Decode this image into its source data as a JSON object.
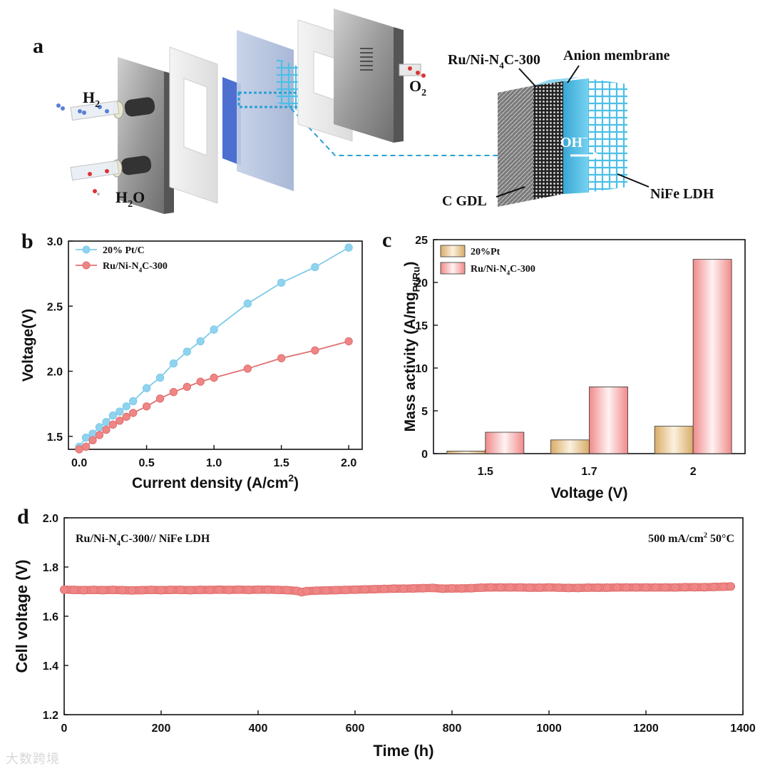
{
  "panels": {
    "a": {
      "letter": "a",
      "labels": {
        "h2": "H",
        "h2_sub": "2",
        "h2o_pre": "H",
        "h2o_sub": "2",
        "h2o_post": "O",
        "o2": "O",
        "o2_sub": "2",
        "cathode_pre": "Ru/Ni-N",
        "cathode_sub": "4",
        "cathode_post": "C-300",
        "membrane": "Anion membrane",
        "ion": "OH",
        "ion_sup": "−",
        "gdl": "C GDL",
        "anode": "NiFe LDH"
      }
    },
    "b": {
      "letter": "b"
    },
    "c": {
      "letter": "c"
    },
    "d": {
      "letter": "d"
    }
  },
  "watermark": "大数跨境",
  "colors": {
    "blue_series": "#7fcbe8",
    "blue_marker": "#8fd3ee",
    "red_series": "#e07070",
    "red_marker": "#ef8585",
    "gold_bar": "#d9ac68",
    "pink_bar": "#f08a8a"
  },
  "chart_data": [
    {
      "id": "b",
      "type": "line",
      "xlabel": "Current density (A/cm",
      "xlabel_sup": "2",
      "xlabel_end": ")",
      "ylabel": "Voltage(V)",
      "xlim": [
        -0.08,
        2.1
      ],
      "ylim": [
        1.4,
        3.0
      ],
      "xticks": [
        "0.0",
        "0.5",
        "1.0",
        "1.5",
        "2.0"
      ],
      "xtick_values": [
        0,
        0.5,
        1.0,
        1.5,
        2.0
      ],
      "yticks": [
        "1.5",
        "2.0",
        "2.5",
        "3.0"
      ],
      "ytick_values": [
        1.5,
        2.0,
        2.5,
        3.0
      ],
      "series": [
        {
          "name": "20% Pt/C",
          "legend_pre": "20% Pt/C",
          "legend_sub": "",
          "legend_post": "",
          "color": "blue",
          "x": [
            0.0,
            0.05,
            0.1,
            0.15,
            0.2,
            0.25,
            0.3,
            0.35,
            0.4,
            0.5,
            0.6,
            0.7,
            0.8,
            0.9,
            1.0,
            1.25,
            1.5,
            1.75,
            2.0
          ],
          "y": [
            1.42,
            1.49,
            1.52,
            1.57,
            1.61,
            1.66,
            1.69,
            1.73,
            1.77,
            1.87,
            1.95,
            2.06,
            2.15,
            2.23,
            2.32,
            2.52,
            2.68,
            2.8,
            2.95
          ]
        },
        {
          "name": "Ru/Ni-N4C-300",
          "legend_pre": "Ru/Ni-N",
          "legend_sub": "4",
          "legend_post": "C-300",
          "color": "red",
          "x": [
            0.0,
            0.05,
            0.1,
            0.15,
            0.2,
            0.25,
            0.3,
            0.35,
            0.4,
            0.5,
            0.6,
            0.7,
            0.8,
            0.9,
            1.0,
            1.25,
            1.5,
            1.75,
            2.0
          ],
          "y": [
            1.4,
            1.42,
            1.47,
            1.51,
            1.55,
            1.59,
            1.62,
            1.65,
            1.68,
            1.73,
            1.79,
            1.84,
            1.88,
            1.92,
            1.95,
            2.02,
            2.1,
            2.16,
            2.23
          ]
        }
      ]
    },
    {
      "id": "c",
      "type": "bar",
      "xlabel": "Voltage (V)",
      "ylabel_pre": "Mass activity (A/mg",
      "ylabel_sub": "Pt/Ru",
      "ylabel_post": ")",
      "ylim": [
        0,
        25
      ],
      "yticks": [
        "0",
        "5",
        "10",
        "15",
        "20",
        "25"
      ],
      "ytick_values": [
        0,
        5,
        10,
        15,
        20,
        25
      ],
      "categories": [
        "1.5",
        "1.7",
        "2"
      ],
      "series": [
        {
          "name": "20%Pt",
          "legend_pre": "20%Pt",
          "legend_sub": "",
          "legend_post": "",
          "color": "gold",
          "values": [
            0.3,
            1.6,
            3.2
          ]
        },
        {
          "name": "Ru/Ni-N4C-300",
          "legend_pre": "Ru/Ni-N",
          "legend_sub": "4",
          "legend_post": "C-300",
          "color": "pink",
          "values": [
            2.5,
            7.8,
            22.7
          ]
        }
      ]
    },
    {
      "id": "d",
      "type": "scatter",
      "xlabel": "Time (h)",
      "ylabel": "Cell voltage (V)",
      "xlim": [
        0,
        1400
      ],
      "ylim": [
        1.2,
        2.0
      ],
      "xticks": [
        "0",
        "200",
        "400",
        "600",
        "800",
        "1000",
        "1200",
        "1400"
      ],
      "xtick_values": [
        0,
        200,
        400,
        600,
        800,
        1000,
        1200,
        1400
      ],
      "yticks": [
        "1.2",
        "1.4",
        "1.6",
        "1.8",
        "2.0"
      ],
      "ytick_values": [
        1.2,
        1.4,
        1.6,
        1.8,
        2.0
      ],
      "annotation_left_pre": "Ru/Ni-N",
      "annotation_left_sub": "4",
      "annotation_left_post": "C-300// NiFe LDH",
      "annotation_right_pre": "500 mA/cm",
      "annotation_right_sup": "2",
      "annotation_right_post": "  50°C",
      "series": [
        {
          "name": "Ru/Ni-N4C-300// NiFe LDH",
          "color": "red",
          "x": [
            0,
            20,
            40,
            60,
            80,
            100,
            120,
            140,
            160,
            180,
            200,
            220,
            240,
            260,
            280,
            300,
            320,
            340,
            360,
            380,
            400,
            420,
            440,
            460,
            480,
            490,
            500,
            520,
            540,
            560,
            580,
            600,
            620,
            640,
            660,
            680,
            700,
            720,
            740,
            760,
            780,
            800,
            820,
            840,
            860,
            880,
            900,
            920,
            940,
            960,
            980,
            1000,
            1020,
            1040,
            1060,
            1080,
            1100,
            1120,
            1140,
            1160,
            1180,
            1200,
            1220,
            1240,
            1260,
            1280,
            1300,
            1320,
            1340,
            1360,
            1375
          ],
          "y": [
            1.708,
            1.707,
            1.706,
            1.707,
            1.706,
            1.707,
            1.706,
            1.705,
            1.706,
            1.707,
            1.706,
            1.707,
            1.707,
            1.706,
            1.707,
            1.707,
            1.708,
            1.707,
            1.708,
            1.707,
            1.708,
            1.708,
            1.707,
            1.706,
            1.703,
            1.698,
            1.702,
            1.704,
            1.705,
            1.706,
            1.707,
            1.708,
            1.709,
            1.71,
            1.711,
            1.712,
            1.712,
            1.713,
            1.714,
            1.715,
            1.712,
            1.713,
            1.713,
            1.714,
            1.716,
            1.717,
            1.717,
            1.717,
            1.717,
            1.716,
            1.716,
            1.717,
            1.716,
            1.715,
            1.715,
            1.716,
            1.716,
            1.716,
            1.717,
            1.717,
            1.717,
            1.717,
            1.717,
            1.717,
            1.717,
            1.718,
            1.718,
            1.718,
            1.719,
            1.72,
            1.721
          ]
        }
      ]
    }
  ]
}
